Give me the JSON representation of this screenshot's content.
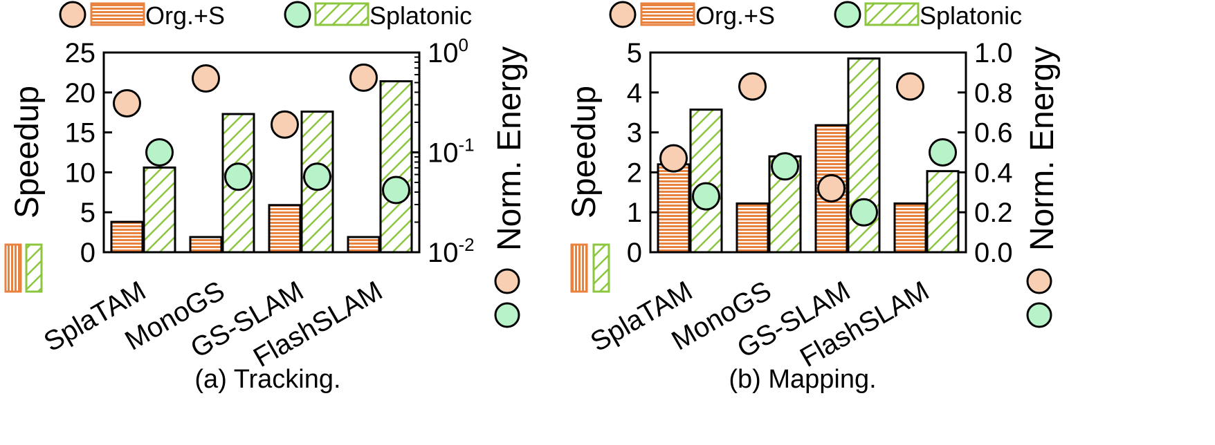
{
  "colors": {
    "orange": "#E8823F",
    "green": "#8CC63F",
    "orange_fill": "#F8CFB2",
    "green_fill": "#B8F2C8"
  },
  "legend": {
    "org_label": "Org.+S",
    "splatonic_label": "Splatonic"
  },
  "chart_data": [
    {
      "type": "bar",
      "title": "(a) Tracking.",
      "categories": [
        "SplaTAM",
        "MonoGS",
        "GS-SLAM",
        "FlashSLAM"
      ],
      "ylabel": "Speedup",
      "y2label": "Norm. Energy",
      "ylim": [
        0,
        25
      ],
      "yticks": [
        "0",
        "5",
        "10",
        "15",
        "20",
        "25"
      ],
      "y2scale": "log",
      "y2lim": [
        0.01,
        1
      ],
      "y2ticks": [
        {
          "value": 0.01,
          "base": "10",
          "exp": "-2"
        },
        {
          "value": 0.1,
          "base": "10",
          "exp": "-1"
        },
        {
          "value": 1,
          "base": "10",
          "exp": "0"
        }
      ],
      "series": [
        {
          "name": "Org.+S",
          "kind": "bar",
          "values": [
            3.8,
            1.9,
            5.9,
            1.9
          ]
        },
        {
          "name": "Splatonic",
          "kind": "bar",
          "values": [
            10.6,
            17.3,
            17.6,
            21.4
          ]
        },
        {
          "name": "Org.+S",
          "kind": "energy",
          "values": [
            0.31,
            0.55,
            0.19,
            0.56
          ]
        },
        {
          "name": "Splatonic",
          "kind": "energy",
          "values": [
            0.1,
            0.057,
            0.057,
            0.042
          ]
        }
      ]
    },
    {
      "type": "bar",
      "title": "(b) Mapping.",
      "categories": [
        "SplaTAM",
        "MonoGS",
        "GS-SLAM",
        "FlashSLAM"
      ],
      "ylabel": "Speedup",
      "y2label": "Norm. Energy",
      "ylim": [
        0,
        5
      ],
      "yticks": [
        "0",
        "1",
        "2",
        "3",
        "4",
        "5"
      ],
      "y2scale": "linear",
      "y2lim": [
        0,
        1
      ],
      "y2ticks": [
        {
          "value": 0,
          "label": "0.0"
        },
        {
          "value": 0.2,
          "label": "0.2"
        },
        {
          "value": 0.4,
          "label": "0.4"
        },
        {
          "value": 0.6,
          "label": "0.6"
        },
        {
          "value": 0.8,
          "label": "0.8"
        },
        {
          "value": 1.0,
          "label": "1.0"
        }
      ],
      "series": [
        {
          "name": "Org.+S",
          "kind": "bar",
          "values": [
            2.2,
            1.22,
            3.18,
            1.22
          ]
        },
        {
          "name": "Splatonic",
          "kind": "bar",
          "values": [
            3.57,
            2.4,
            4.85,
            2.03
          ]
        },
        {
          "name": "Org.+S",
          "kind": "energy",
          "values": [
            0.47,
            0.83,
            0.32,
            0.83
          ]
        },
        {
          "name": "Splatonic",
          "kind": "energy",
          "values": [
            0.28,
            0.43,
            0.2,
            0.5
          ]
        }
      ]
    }
  ]
}
